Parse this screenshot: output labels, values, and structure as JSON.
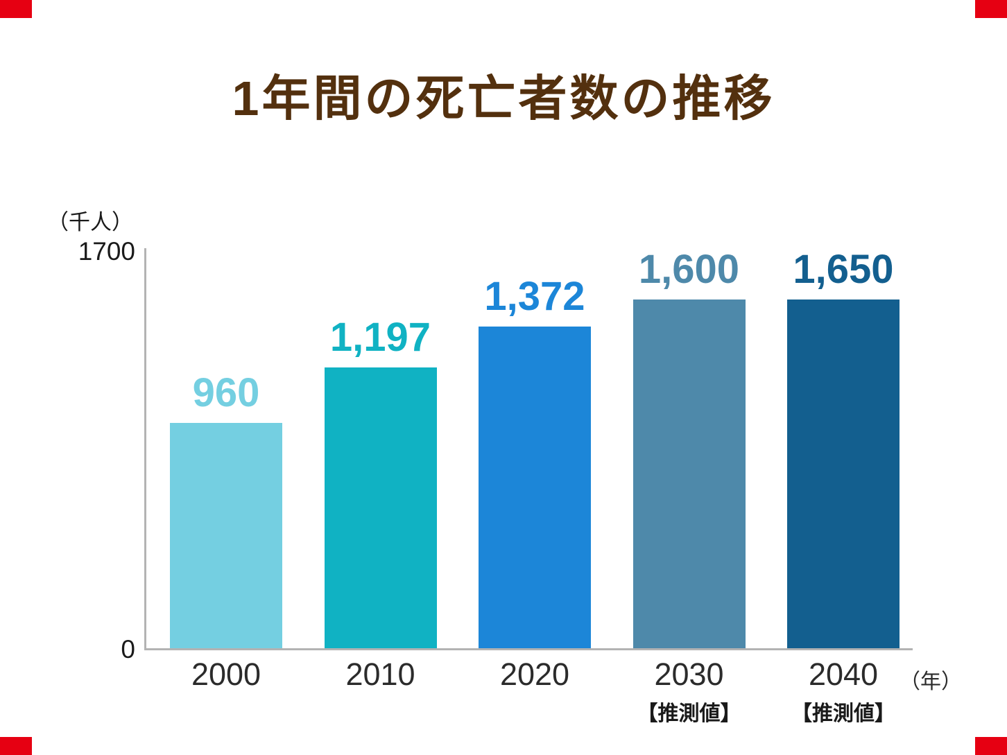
{
  "page": {
    "title": "1年間の死亡者数の推移"
  },
  "axes": {
    "y_unit": "（千人）",
    "y_max_tick": "1700",
    "y_min_tick": "0",
    "x_unit": "（年）"
  },
  "chart_data": {
    "type": "bar",
    "title": "1年間の死亡者数の推移",
    "ylabel": "（千人）",
    "xlabel": "（年）",
    "ylim": [
      0,
      1700
    ],
    "grid": false,
    "legend": "none",
    "categories": [
      "2000",
      "2010",
      "2020",
      "2030",
      "2040"
    ],
    "values": [
      960,
      1197,
      1372,
      1600,
      1650
    ],
    "value_labels": [
      "960",
      "1,197",
      "1,372",
      "1,600",
      "1,650"
    ],
    "bar_colors": [
      "#74cfe1",
      "#10b2c3",
      "#1c86d8",
      "#4e89aa",
      "#135f8f"
    ],
    "sub_labels": [
      "",
      "",
      "",
      "【推測値】",
      "【推測値】"
    ]
  },
  "style": {
    "title_color": "#53300e",
    "axis_color": "#b3b3b3",
    "corner_mark_color": "#e60012",
    "tick_color": "#1a1a1a"
  }
}
